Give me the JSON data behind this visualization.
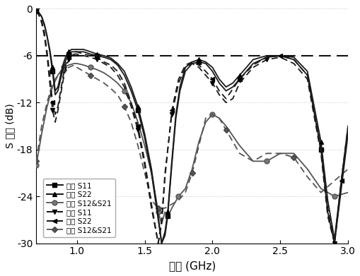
{
  "title": "",
  "xlabel": "频率 (GHz)",
  "ylabel": "S 参数 (dB)",
  "xlim": [
    0.7,
    3.0
  ],
  "ylim": [
    -30,
    0
  ],
  "yticks": [
    0,
    -6,
    -12,
    -18,
    -24,
    -30
  ],
  "xticks": [
    1.0,
    1.5,
    2.0,
    2.5,
    3.0
  ],
  "hline_y": -6,
  "background_color": "#ffffff",
  "sim_S11_x": [
    0.7,
    0.72,
    0.74,
    0.76,
    0.78,
    0.8,
    0.82,
    0.84,
    0.86,
    0.88,
    0.9,
    0.92,
    0.94,
    0.96,
    0.98,
    1.0,
    1.05,
    1.1,
    1.15,
    1.2,
    1.25,
    1.3,
    1.35,
    1.4,
    1.45,
    1.5,
    1.55,
    1.6,
    1.625,
    1.65,
    1.67,
    1.7,
    1.73,
    1.76,
    1.8,
    1.85,
    1.9,
    1.95,
    2.0,
    2.05,
    2.1,
    2.15,
    2.2,
    2.3,
    2.4,
    2.5,
    2.6,
    2.7,
    2.8,
    2.85,
    2.9,
    2.95,
    3.0
  ],
  "sim_S11_y": [
    -0.2,
    -0.5,
    -1.0,
    -2.0,
    -3.5,
    -5.5,
    -8.0,
    -11.0,
    -10.5,
    -9.0,
    -7.5,
    -6.5,
    -5.8,
    -5.5,
    -5.5,
    -5.5,
    -5.5,
    -5.8,
    -6.0,
    -6.2,
    -6.5,
    -7.2,
    -8.5,
    -10.5,
    -13.0,
    -16.5,
    -21.0,
    -27.0,
    -30.0,
    -29.0,
    -26.5,
    -20.0,
    -14.0,
    -10.5,
    -8.0,
    -7.0,
    -6.8,
    -7.0,
    -8.0,
    -9.5,
    -10.5,
    -10.0,
    -9.0,
    -7.0,
    -6.2,
    -6.0,
    -6.5,
    -8.5,
    -18.0,
    -26.0,
    -30.0,
    -23.0,
    -16.0
  ],
  "sim_S22_x": [
    0.7,
    0.72,
    0.74,
    0.76,
    0.78,
    0.8,
    0.82,
    0.84,
    0.86,
    0.88,
    0.9,
    0.92,
    0.94,
    0.96,
    0.98,
    1.0,
    1.05,
    1.1,
    1.15,
    1.2,
    1.25,
    1.3,
    1.35,
    1.4,
    1.45,
    1.5,
    1.55,
    1.6,
    1.625,
    1.65,
    1.67,
    1.7,
    1.73,
    1.76,
    1.8,
    1.85,
    1.9,
    1.95,
    2.0,
    2.05,
    2.1,
    2.15,
    2.2,
    2.3,
    2.4,
    2.5,
    2.6,
    2.7,
    2.8,
    2.85,
    2.9,
    2.95,
    3.0
  ],
  "sim_S22_y": [
    -0.2,
    -0.5,
    -1.0,
    -2.0,
    -3.5,
    -5.2,
    -7.5,
    -10.5,
    -10.0,
    -8.5,
    -7.0,
    -6.0,
    -5.5,
    -5.2,
    -5.2,
    -5.2,
    -5.2,
    -5.5,
    -5.8,
    -6.0,
    -6.3,
    -7.0,
    -8.0,
    -10.0,
    -12.5,
    -16.0,
    -20.5,
    -26.5,
    -30.0,
    -28.5,
    -26.0,
    -19.5,
    -13.5,
    -10.0,
    -7.5,
    -6.8,
    -6.5,
    -6.8,
    -7.5,
    -9.0,
    -10.0,
    -9.5,
    -8.5,
    -6.5,
    -6.0,
    -6.0,
    -6.2,
    -8.0,
    -17.0,
    -24.5,
    -29.5,
    -22.0,
    -15.0
  ],
  "sim_S12S21_x": [
    0.7,
    0.74,
    0.78,
    0.82,
    0.86,
    0.9,
    0.94,
    0.98,
    1.0,
    1.05,
    1.1,
    1.15,
    1.2,
    1.25,
    1.3,
    1.35,
    1.4,
    1.45,
    1.5,
    1.55,
    1.6,
    1.625,
    1.65,
    1.675,
    1.7,
    1.75,
    1.8,
    1.85,
    1.9,
    1.95,
    2.0,
    2.05,
    2.1,
    2.2,
    2.3,
    2.4,
    2.5,
    2.6,
    2.7,
    2.8,
    2.9,
    3.0
  ],
  "sim_S12S21_y": [
    -20.0,
    -16.0,
    -12.5,
    -10.0,
    -8.5,
    -7.5,
    -7.2,
    -7.0,
    -7.0,
    -7.2,
    -7.5,
    -7.8,
    -8.2,
    -8.8,
    -9.5,
    -10.5,
    -12.0,
    -14.5,
    -17.5,
    -21.0,
    -26.0,
    -27.5,
    -26.0,
    -26.5,
    -25.5,
    -24.0,
    -23.0,
    -20.5,
    -17.0,
    -14.5,
    -13.5,
    -14.0,
    -15.0,
    -17.5,
    -19.5,
    -19.5,
    -18.5,
    -18.5,
    -20.5,
    -23.0,
    -24.0,
    -23.5
  ],
  "meas_S11_x": [
    0.7,
    0.72,
    0.74,
    0.76,
    0.78,
    0.8,
    0.82,
    0.84,
    0.86,
    0.88,
    0.9,
    0.92,
    0.94,
    0.96,
    0.98,
    1.0,
    1.05,
    1.1,
    1.15,
    1.2,
    1.25,
    1.3,
    1.35,
    1.4,
    1.45,
    1.5,
    1.55,
    1.6,
    1.625,
    1.65,
    1.7,
    1.75,
    1.8,
    1.85,
    1.9,
    1.95,
    2.0,
    2.05,
    2.1,
    2.15,
    2.2,
    2.3,
    2.4,
    2.5,
    2.6,
    2.7,
    2.8,
    2.85,
    2.9,
    2.95,
    3.0
  ],
  "meas_S11_y": [
    -0.3,
    -0.8,
    -1.8,
    -3.5,
    -6.0,
    -9.5,
    -13.0,
    -14.5,
    -13.0,
    -11.0,
    -9.0,
    -7.5,
    -6.5,
    -6.0,
    -5.8,
    -5.8,
    -6.0,
    -6.2,
    -6.5,
    -7.0,
    -7.5,
    -8.5,
    -10.0,
    -12.5,
    -15.5,
    -20.0,
    -25.5,
    -30.0,
    -27.0,
    -21.0,
    -13.5,
    -9.5,
    -7.5,
    -7.0,
    -7.5,
    -8.5,
    -9.5,
    -11.0,
    -12.0,
    -11.5,
    -9.5,
    -7.5,
    -6.5,
    -6.2,
    -7.0,
    -9.0,
    -18.5,
    -26.5,
    -30.0,
    -22.5,
    -15.5
  ],
  "meas_S22_x": [
    0.7,
    0.72,
    0.74,
    0.76,
    0.78,
    0.8,
    0.82,
    0.84,
    0.86,
    0.88,
    0.9,
    0.92,
    0.94,
    0.96,
    0.98,
    1.0,
    1.05,
    1.1,
    1.15,
    1.2,
    1.25,
    1.3,
    1.35,
    1.4,
    1.45,
    1.5,
    1.55,
    1.6,
    1.625,
    1.65,
    1.7,
    1.75,
    1.8,
    1.85,
    1.9,
    1.95,
    2.0,
    2.05,
    2.1,
    2.2,
    2.3,
    2.4,
    2.5,
    2.6,
    2.7,
    2.8,
    2.85,
    2.9,
    2.95,
    3.0
  ],
  "meas_S22_y": [
    -0.3,
    -0.8,
    -1.5,
    -3.0,
    -5.5,
    -8.5,
    -12.0,
    -13.5,
    -12.5,
    -10.5,
    -8.5,
    -7.0,
    -6.2,
    -5.8,
    -5.5,
    -5.5,
    -5.8,
    -6.0,
    -6.2,
    -6.8,
    -7.2,
    -8.0,
    -9.5,
    -12.0,
    -15.0,
    -19.5,
    -25.0,
    -30.0,
    -27.5,
    -21.5,
    -13.0,
    -9.0,
    -7.2,
    -6.8,
    -7.2,
    -8.0,
    -9.0,
    -10.5,
    -11.5,
    -9.0,
    -7.2,
    -6.2,
    -6.0,
    -6.5,
    -8.5,
    -18.0,
    -25.5,
    -30.0,
    -22.0,
    -15.0
  ],
  "meas_S12S21_x": [
    0.7,
    0.74,
    0.78,
    0.82,
    0.86,
    0.9,
    0.94,
    0.98,
    1.0,
    1.05,
    1.1,
    1.15,
    1.2,
    1.25,
    1.3,
    1.35,
    1.4,
    1.45,
    1.5,
    1.55,
    1.6,
    1.65,
    1.7,
    1.75,
    1.8,
    1.85,
    1.9,
    1.95,
    2.0,
    2.05,
    2.1,
    2.2,
    2.3,
    2.4,
    2.5,
    2.6,
    2.7,
    2.8,
    2.9,
    3.0
  ],
  "meas_S12S21_y": [
    -19.5,
    -15.0,
    -12.0,
    -9.5,
    -8.5,
    -7.8,
    -7.5,
    -7.2,
    -7.5,
    -8.0,
    -8.5,
    -9.0,
    -9.5,
    -10.2,
    -11.0,
    -12.5,
    -14.5,
    -17.5,
    -21.0,
    -24.5,
    -25.5,
    -25.5,
    -25.0,
    -24.5,
    -23.5,
    -21.0,
    -17.5,
    -14.0,
    -13.5,
    -14.0,
    -15.5,
    -18.5,
    -19.5,
    -18.5,
    -18.5,
    -19.0,
    -21.5,
    -23.5,
    -22.0,
    -20.5
  ],
  "legend_labels": [
    "仿真 S11",
    "仿真 S22",
    "仿真 S12&S21",
    "测试 S11",
    "测试 S22",
    "测试 S12&S21"
  ]
}
